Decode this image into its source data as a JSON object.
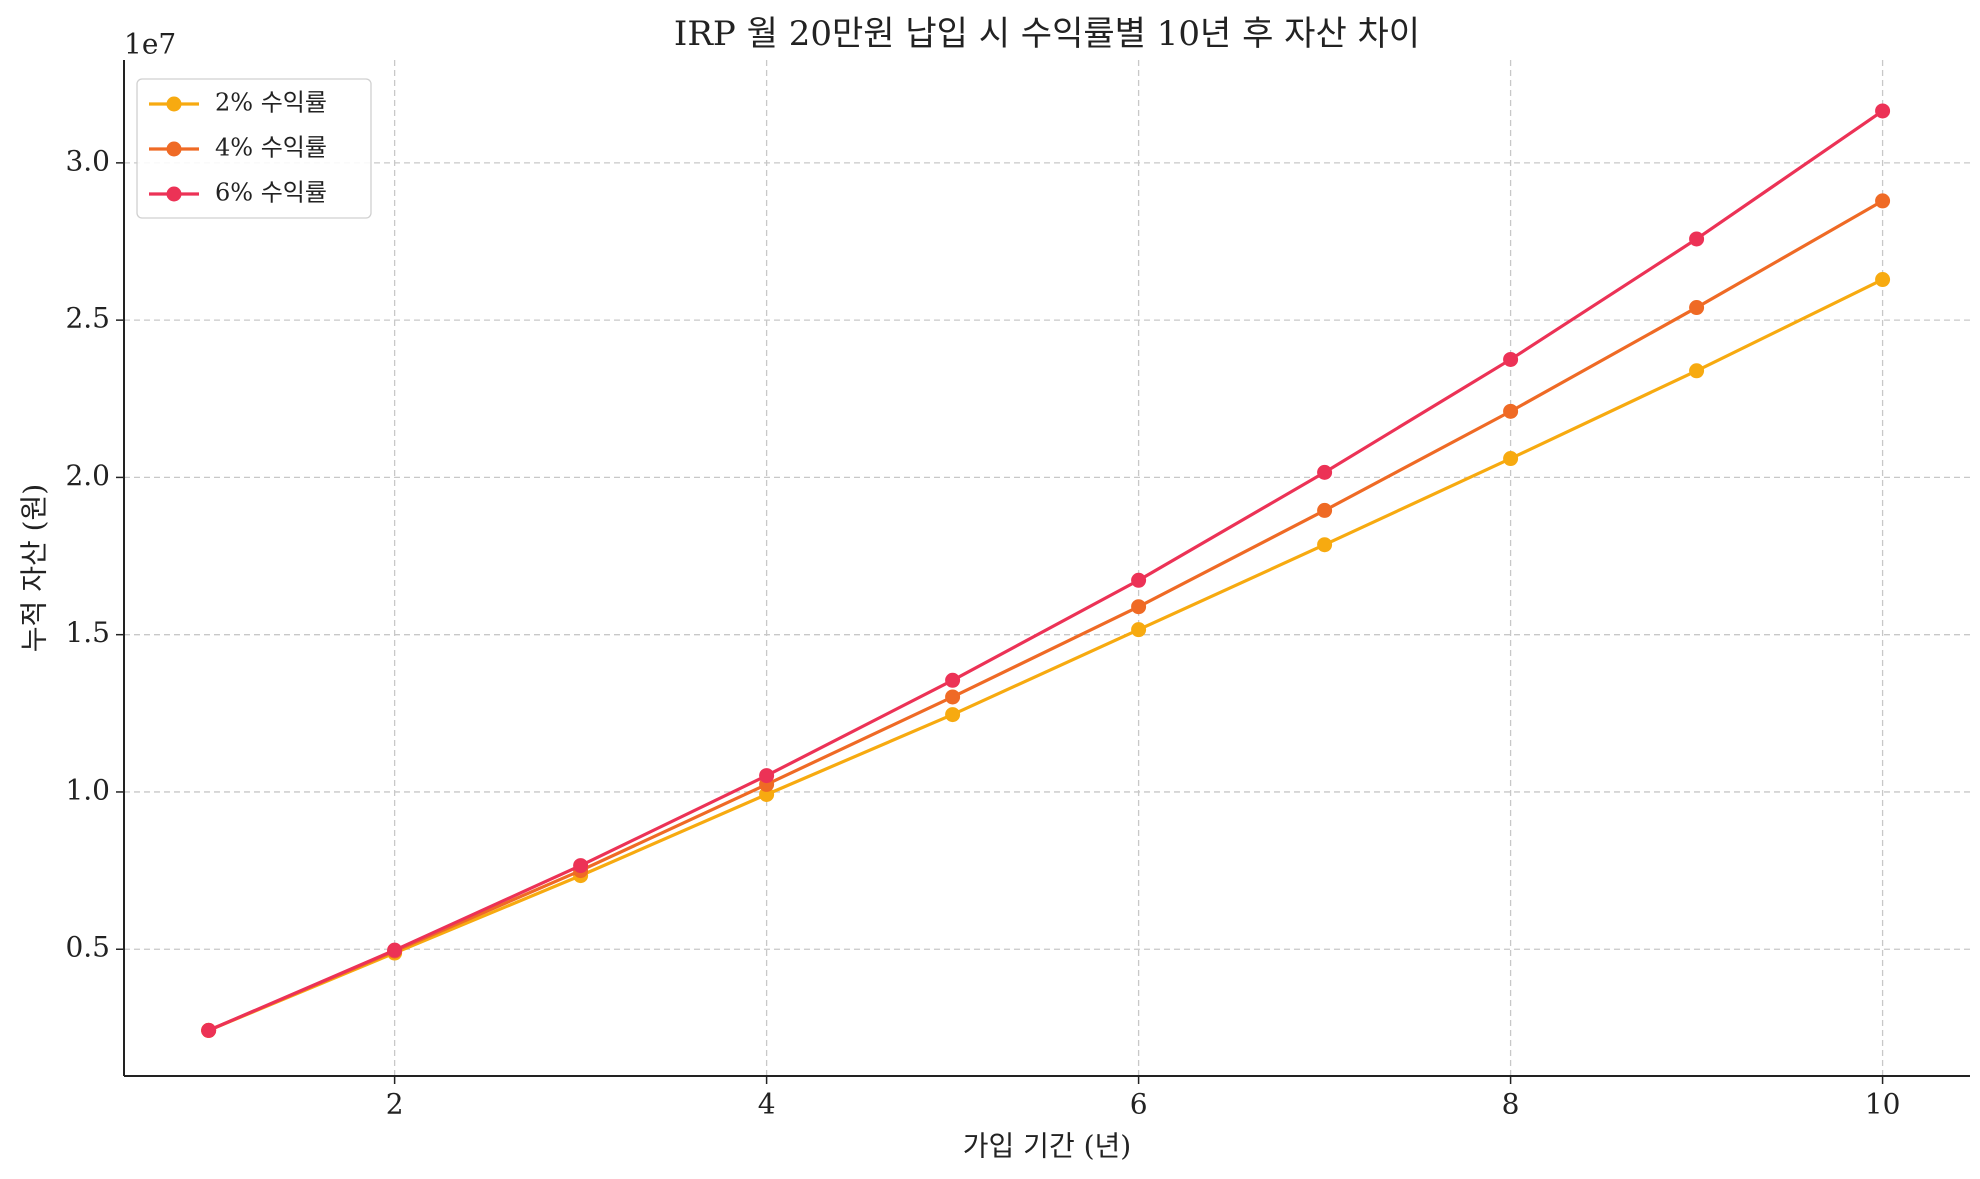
{
  "chart_data": {
    "type": "line",
    "title": "IRP 월 20만원 납입 시 수익률별 10년 후 자산 차이",
    "x_label": "가입 기간 (년)",
    "y_label": "누적 자산 (원)",
    "y_offset_label": "1e7",
    "x": [
      1,
      2,
      3,
      4,
      5,
      6,
      7,
      8,
      9,
      10
    ],
    "series": [
      {
        "name": "2% 수익률",
        "color": "#f7aa10",
        "values": [
          0.242,
          0.488,
          0.734,
          0.992,
          1.246,
          1.516,
          1.786,
          2.06,
          2.339,
          2.629
        ]
      },
      {
        "name": "4% 수익률",
        "color": "#ef6a25",
        "values": [
          0.242,
          0.494,
          0.75,
          1.024,
          1.302,
          1.589,
          1.895,
          2.21,
          2.54,
          2.879
        ]
      },
      {
        "name": "6% 수익률",
        "color": "#ec3256",
        "values": [
          0.242,
          0.497,
          0.766,
          1.052,
          1.355,
          1.673,
          2.016,
          2.375,
          2.758,
          3.165
        ]
      }
    ],
    "xlim": [
      0.545,
      10.47
    ],
    "ylim": [
      0.097,
      3.327
    ],
    "xticks": [
      2,
      4,
      6,
      8,
      10
    ],
    "yticks": [
      0.5,
      {
        "value": 1,
        "label": "1.0"
      },
      1.5,
      {
        "value": 2,
        "label": "2.0"
      },
      2.5,
      {
        "value": 3,
        "label": "3.0"
      }
    ],
    "grid": true,
    "legend": "upper left"
  }
}
